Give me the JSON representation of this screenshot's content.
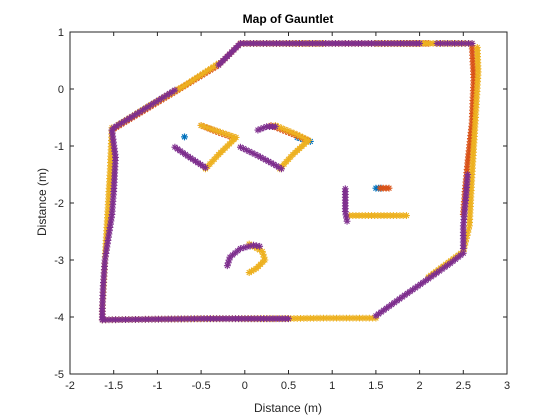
{
  "chart_data": {
    "type": "scatter",
    "title": "Map of Gauntlet",
    "xlabel": "Distance (m)",
    "ylabel": "Distance (m)",
    "xlim": [
      -2,
      3
    ],
    "ylim": [
      -5,
      1
    ],
    "xticks": [
      -2,
      -1.5,
      -1,
      -0.5,
      0,
      0.5,
      1,
      1.5,
      2,
      2.5,
      3
    ],
    "xtick_labels": [
      "-2",
      "-1.5",
      "-1",
      "-0.5",
      "0",
      "0.5",
      "1",
      "1.5",
      "2",
      "2.5",
      "3"
    ],
    "yticks": [
      1,
      0,
      -1,
      -2,
      -3,
      -4,
      -5
    ],
    "ytick_labels": [
      "1",
      "0",
      "-1",
      "-2",
      "-3",
      "-4",
      "-5"
    ],
    "grid": false,
    "legend": "none",
    "marker": "asterisk",
    "series": [
      {
        "color": "#0072BD",
        "segments": [
          [
            [
              -0.69,
              -0.84
            ],
            [
              -0.69,
              -0.84
            ]
          ],
          [
            [
              0.6,
              -0.85
            ],
            [
              0.75,
              -0.92
            ]
          ],
          [
            [
              1.5,
              -1.74
            ],
            [
              1.56,
              -1.74
            ]
          ]
        ]
      },
      {
        "color": "#D95319",
        "segments": [
          [
            [
              -1.5,
              -0.7
            ],
            [
              -1.2,
              -0.42
            ],
            [
              -0.8,
              -0.05
            ],
            [
              -0.3,
              0.42
            ],
            [
              -0.05,
              0.8
            ]
          ],
          [
            [
              -0.05,
              0.8
            ],
            [
              0.4,
              0.8
            ],
            [
              1.0,
              0.8
            ],
            [
              1.6,
              0.8
            ],
            [
              2.1,
              0.8
            ]
          ],
          [
            [
              2.6,
              0.76
            ],
            [
              2.62,
              0.2
            ],
            [
              2.6,
              -0.6
            ],
            [
              2.55,
              -1.3
            ],
            [
              2.52,
              -1.8
            ],
            [
              2.5,
              -2.2
            ]
          ],
          [
            [
              -0.5,
              -0.64
            ],
            [
              -0.3,
              -0.76
            ],
            [
              -0.12,
              -0.86
            ]
          ],
          [
            [
              0.3,
              -0.64
            ],
            [
              0.5,
              -0.76
            ],
            [
              0.72,
              -0.9
            ]
          ],
          [
            [
              1.55,
              -1.74
            ],
            [
              1.65,
              -1.74
            ]
          ]
        ]
      },
      {
        "color": "#EDB120",
        "segments": [
          [
            [
              -1.52,
              -0.68
            ],
            [
              -1.54,
              -1.4
            ],
            [
              -1.57,
              -2.2
            ],
            [
              -1.6,
              -3.0
            ],
            [
              -1.63,
              -3.85
            ],
            [
              -1.63,
              -4.05
            ]
          ],
          [
            [
              -1.63,
              -4.05
            ],
            [
              -1.1,
              -4.04
            ],
            [
              -0.4,
              -4.03
            ],
            [
              0.3,
              -4.03
            ],
            [
              0.9,
              -4.02
            ],
            [
              1.5,
              -4.02
            ]
          ],
          [
            [
              2.1,
              -3.3
            ],
            [
              2.5,
              -2.85
            ],
            [
              2.57,
              -2.4
            ],
            [
              2.6,
              -1.5
            ],
            [
              2.64,
              -0.5
            ],
            [
              2.67,
              0.3
            ],
            [
              2.66,
              0.73
            ]
          ],
          [
            [
              1.5,
              0.8
            ],
            [
              1.9,
              0.8
            ],
            [
              2.3,
              0.8
            ],
            [
              2.6,
              0.8
            ]
          ],
          [
            [
              -0.05,
              0.8
            ],
            [
              0.4,
              0.8
            ],
            [
              0.9,
              0.8
            ]
          ],
          [
            [
              -1.45,
              -0.63
            ],
            [
              -1.1,
              -0.3
            ],
            [
              -0.7,
              0.05
            ],
            [
              -0.3,
              0.45
            ]
          ],
          [
            [
              -0.5,
              -0.64
            ],
            [
              -0.35,
              -0.72
            ],
            [
              -0.1,
              -0.85
            ],
            [
              -0.3,
              -1.15
            ],
            [
              -0.45,
              -1.4
            ]
          ],
          [
            [
              0.35,
              -0.64
            ],
            [
              0.6,
              -0.8
            ],
            [
              0.73,
              -0.9
            ],
            [
              0.55,
              -1.15
            ],
            [
              0.4,
              -1.4
            ]
          ],
          [
            [
              1.2,
              -2.22
            ],
            [
              1.45,
              -2.22
            ],
            [
              1.7,
              -2.22
            ],
            [
              1.85,
              -2.22
            ]
          ],
          [
            [
              0.05,
              -2.72
            ],
            [
              0.2,
              -2.85
            ],
            [
              0.23,
              -3.0
            ],
            [
              0.13,
              -3.15
            ],
            [
              0.05,
              -3.22
            ]
          ]
        ]
      },
      {
        "color": "#7E2F8E",
        "segments": [
          [
            [
              -1.52,
              -0.72
            ],
            [
              -1.48,
              -1.2
            ],
            [
              -1.5,
              -1.8
            ],
            [
              -1.52,
              -2.2
            ],
            [
              -1.56,
              -2.6
            ],
            [
              -1.6,
              -3.0
            ],
            [
              -1.62,
              -3.45
            ],
            [
              -1.63,
              -3.85
            ],
            [
              -1.63,
              -4.05
            ]
          ],
          [
            [
              -1.63,
              -4.05
            ],
            [
              -1.1,
              -4.04
            ],
            [
              -0.5,
              -4.03
            ],
            [
              0.0,
              -4.03
            ],
            [
              0.5,
              -4.03
            ]
          ],
          [
            [
              1.5,
              -3.98
            ],
            [
              1.8,
              -3.65
            ],
            [
              2.1,
              -3.33
            ],
            [
              2.35,
              -3.06
            ],
            [
              2.5,
              -2.88
            ]
          ],
          [
            [
              2.5,
              -2.8
            ],
            [
              2.5,
              -2.4
            ],
            [
              2.53,
              -1.9
            ],
            [
              2.55,
              -1.5
            ]
          ],
          [
            [
              2.2,
              0.8
            ],
            [
              2.4,
              0.8
            ],
            [
              2.6,
              0.8
            ]
          ],
          [
            [
              -0.3,
              0.42
            ],
            [
              -0.05,
              0.8
            ],
            [
              0.4,
              0.8
            ],
            [
              1.0,
              0.8
            ],
            [
              1.6,
              0.8
            ],
            [
              2.0,
              0.8
            ]
          ],
          [
            [
              -1.5,
              -0.68
            ],
            [
              -1.2,
              -0.4
            ],
            [
              -0.8,
              -0.02
            ]
          ],
          [
            [
              -0.8,
              -1.02
            ],
            [
              -0.65,
              -1.18
            ],
            [
              -0.45,
              -1.38
            ]
          ],
          [
            [
              -0.05,
              -1.02
            ],
            [
              0.15,
              -1.17
            ],
            [
              0.33,
              -1.32
            ],
            [
              0.42,
              -1.4
            ]
          ],
          [
            [
              0.15,
              -0.72
            ],
            [
              0.25,
              -0.66
            ],
            [
              0.35,
              -0.66
            ]
          ],
          [
            [
              1.15,
              -1.75
            ],
            [
              1.15,
              -1.95
            ],
            [
              1.15,
              -2.15
            ],
            [
              1.17,
              -2.32
            ]
          ],
          [
            [
              -0.2,
              -3.1
            ],
            [
              -0.17,
              -2.95
            ],
            [
              -0.05,
              -2.8
            ],
            [
              0.1,
              -2.74
            ],
            [
              0.17,
              -2.76
            ]
          ]
        ]
      }
    ]
  }
}
